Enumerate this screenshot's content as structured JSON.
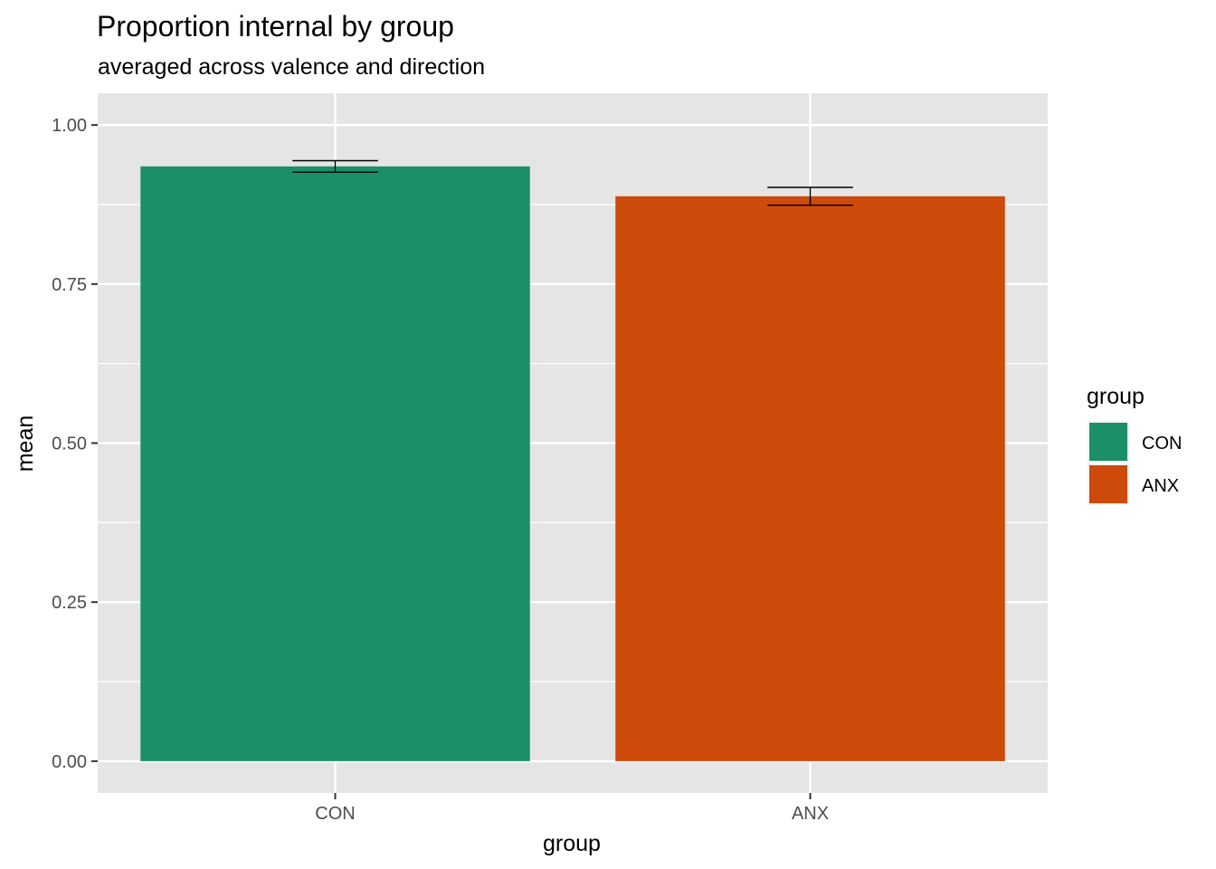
{
  "chart_data": {
    "type": "bar",
    "title": "Proportion internal by group",
    "subtitle": "averaged across valence and direction",
    "xlabel": "group",
    "ylabel": "mean",
    "categories": [
      "CON",
      "ANX"
    ],
    "values": [
      0.935,
      0.888
    ],
    "error_bars": [
      {
        "low": 0.926,
        "high": 0.944
      },
      {
        "low": 0.874,
        "high": 0.902
      }
    ],
    "ylim": [
      -0.05,
      1.05
    ],
    "yticks": [
      0.0,
      0.25,
      0.5,
      0.75,
      1.0
    ],
    "ytick_labels": [
      "0.00",
      "0.25",
      "0.50",
      "0.75",
      "1.00"
    ],
    "colors": [
      "#1b9068",
      "#cd4a0a"
    ],
    "grid": true,
    "legend": {
      "title": "group",
      "position": "right",
      "entries": [
        "CON",
        "ANX"
      ]
    }
  }
}
